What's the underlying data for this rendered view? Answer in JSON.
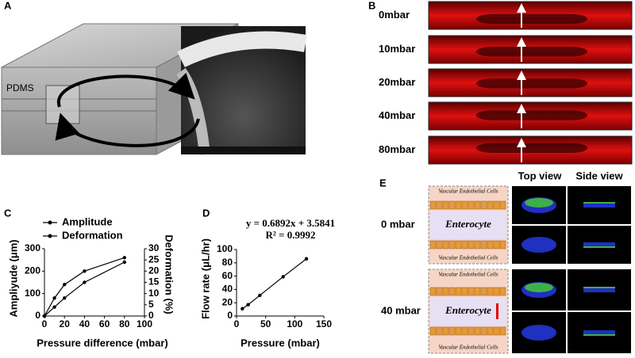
{
  "panel_labels": [
    "A",
    "B",
    "C",
    "D",
    "E"
  ],
  "panel_a": {
    "label": "PDMS"
  },
  "panel_b": {
    "rows": [
      "0mbar",
      "10mbar",
      "20mbar",
      "40mbar",
      "80mbar"
    ]
  },
  "panel_e": {
    "headers": [
      "Top view",
      "Side view"
    ],
    "rows": [
      {
        "label": "0 mbar",
        "diagram": {
          "top": "Vascular Endothelial Cells",
          "middle": "Enterocyte",
          "bottom": "Vascular Endothelial Cells"
        }
      },
      {
        "label": "40 mbar",
        "diagram": {
          "top": "Vascular Endothelial Cells",
          "middle": "Enterocyte",
          "bottom": "Vascular Endothelial Cells"
        }
      }
    ]
  },
  "chart_data": [
    {
      "type": "line",
      "x_label": "Pressure difference (mbar)",
      "y_label": "Ampliyude (μm)",
      "y2_label": "Deformation (%)",
      "x": [
        0,
        10,
        20,
        40,
        80
      ],
      "series": [
        {
          "name": "Amplitude",
          "color": "#000000",
          "values": [
            0,
            80,
            140,
            200,
            260
          ]
        },
        {
          "name": "Deformation",
          "color": "#000000",
          "axis": "y2",
          "values": [
            0,
            4,
            8,
            15,
            24
          ]
        }
      ],
      "xlim": [
        0,
        100
      ],
      "xticks": [
        0,
        20,
        40,
        60,
        80,
        100
      ],
      "ylim": [
        0,
        300
      ],
      "yticks": [
        0,
        100,
        200,
        300
      ],
      "y2lim": [
        0,
        30
      ],
      "y2ticks": [
        0,
        5,
        10,
        15,
        20,
        25,
        30
      ],
      "legend": "top-left"
    },
    {
      "type": "line",
      "x_label": "Pressure (mbar)",
      "y_label": "Flow rate (μL/hr)",
      "annotations": [
        "y = 0.6892x + 3.5841",
        "R² = 0.9992"
      ],
      "x": [
        10,
        20,
        40,
        80,
        120
      ],
      "values": [
        11,
        17,
        31,
        59,
        86
      ],
      "color": "#000000",
      "xlim": [
        0,
        150
      ],
      "xticks": [
        0,
        50,
        100,
        150
      ],
      "ylim": [
        0,
        100
      ],
      "yticks": [
        0,
        20,
        40,
        60,
        80,
        100
      ]
    }
  ]
}
